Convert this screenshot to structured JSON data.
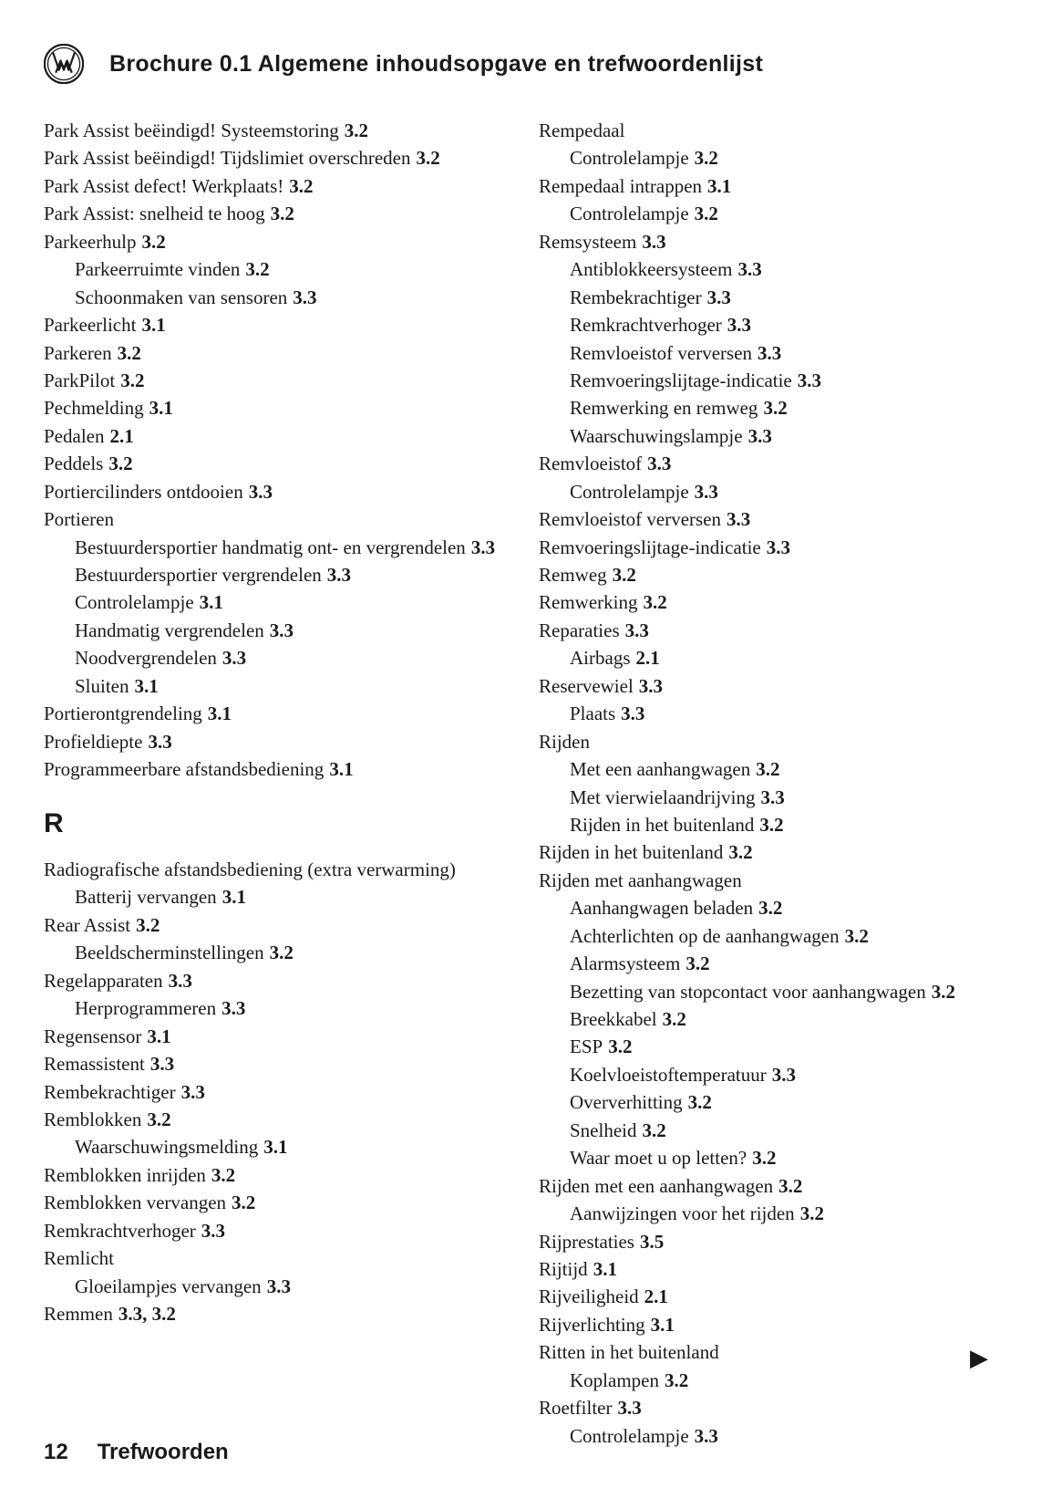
{
  "header": {
    "title": "Brochure 0.1  Algemene inhoudsopgave en trefwoordenlijst"
  },
  "footer": {
    "page_number": "12",
    "section": "Trefwoorden"
  },
  "continue_arrow": "▶",
  "left_column": [
    {
      "indent": 0,
      "label": "Park Assist beëindigd! Systeemstoring",
      "ref": "3.2"
    },
    {
      "indent": 0,
      "label": "Park Assist beëindigd! Tijdslimiet overschreden",
      "ref": "3.2",
      "wrap": true
    },
    {
      "indent": 0,
      "label": "Park Assist defect! Werkplaats!",
      "ref": "3.2"
    },
    {
      "indent": 0,
      "label": "Park Assist: snelheid te hoog",
      "ref": "3.2"
    },
    {
      "indent": 0,
      "label": "Parkeerhulp",
      "ref": "3.2"
    },
    {
      "indent": 1,
      "label": "Parkeerruimte vinden",
      "ref": "3.2"
    },
    {
      "indent": 1,
      "label": "Schoonmaken van sensoren",
      "ref": "3.3"
    },
    {
      "indent": 0,
      "label": "Parkeerlicht",
      "ref": "3.1"
    },
    {
      "indent": 0,
      "label": "Parkeren",
      "ref": "3.2"
    },
    {
      "indent": 0,
      "label": "ParkPilot",
      "ref": "3.2"
    },
    {
      "indent": 0,
      "label": "Pechmelding",
      "ref": "3.1"
    },
    {
      "indent": 0,
      "label": "Pedalen",
      "ref": "2.1"
    },
    {
      "indent": 0,
      "label": "Peddels",
      "ref": "3.2"
    },
    {
      "indent": 0,
      "label": "Portiercilinders ontdooien",
      "ref": "3.3"
    },
    {
      "indent": 0,
      "label": "Portieren",
      "ref": ""
    },
    {
      "indent": 1,
      "label": "Bestuurdersportier handmatig ont- en vergrendelen",
      "ref": "3.3",
      "wrap": true
    },
    {
      "indent": 1,
      "label": "Bestuurdersportier vergrendelen",
      "ref": "3.3"
    },
    {
      "indent": 1,
      "label": "Controlelampje",
      "ref": "3.1"
    },
    {
      "indent": 1,
      "label": "Handmatig vergrendelen",
      "ref": "3.3"
    },
    {
      "indent": 1,
      "label": "Noodvergrendelen",
      "ref": "3.3"
    },
    {
      "indent": 1,
      "label": "Sluiten",
      "ref": "3.1"
    },
    {
      "indent": 0,
      "label": "Portierontgrendeling",
      "ref": "3.1"
    },
    {
      "indent": 0,
      "label": "Profieldiepte",
      "ref": "3.3"
    },
    {
      "indent": 0,
      "label": "Programmeerbare afstandsbediening",
      "ref": "3.1"
    },
    {
      "section_letter": "R"
    },
    {
      "indent": 0,
      "label": "Radiografische afstandsbediening (extra verwarming)",
      "ref": "",
      "wrap": true
    },
    {
      "indent": 1,
      "label": "Batterij vervangen",
      "ref": "3.1"
    },
    {
      "indent": 0,
      "label": "Rear Assist",
      "ref": "3.2"
    },
    {
      "indent": 1,
      "label": "Beeldscherminstellingen",
      "ref": "3.2"
    },
    {
      "indent": 0,
      "label": "Regelapparaten",
      "ref": "3.3"
    },
    {
      "indent": 1,
      "label": "Herprogrammeren",
      "ref": "3.3"
    },
    {
      "indent": 0,
      "label": "Regensensor",
      "ref": "3.1"
    },
    {
      "indent": 0,
      "label": "Remassistent",
      "ref": "3.3"
    },
    {
      "indent": 0,
      "label": "Rembekrachtiger",
      "ref": "3.3"
    },
    {
      "indent": 0,
      "label": "Remblokken",
      "ref": "3.2"
    },
    {
      "indent": 1,
      "label": "Waarschuwingsmelding",
      "ref": "3.1"
    },
    {
      "indent": 0,
      "label": "Remblokken inrijden",
      "ref": "3.2"
    },
    {
      "indent": 0,
      "label": "Remblokken vervangen",
      "ref": "3.2"
    },
    {
      "indent": 0,
      "label": "Remkrachtverhoger",
      "ref": "3.3"
    },
    {
      "indent": 0,
      "label": "Remlicht",
      "ref": ""
    },
    {
      "indent": 1,
      "label": "Gloeilampjes vervangen",
      "ref": "3.3"
    },
    {
      "indent": 0,
      "label": "Remmen",
      "ref": "3.3, 3.2"
    }
  ],
  "right_column": [
    {
      "indent": 0,
      "label": "Rempedaal",
      "ref": ""
    },
    {
      "indent": 1,
      "label": "Controlelampje",
      "ref": "3.2"
    },
    {
      "indent": 0,
      "label": "Rempedaal intrappen",
      "ref": "3.1"
    },
    {
      "indent": 1,
      "label": "Controlelampje",
      "ref": "3.2"
    },
    {
      "indent": 0,
      "label": "Remsysteem",
      "ref": "3.3"
    },
    {
      "indent": 1,
      "label": "Antiblokkeersysteem",
      "ref": "3.3"
    },
    {
      "indent": 1,
      "label": "Rembekrachtiger",
      "ref": "3.3"
    },
    {
      "indent": 1,
      "label": "Remkrachtverhoger",
      "ref": "3.3"
    },
    {
      "indent": 1,
      "label": "Remvloeistof verversen",
      "ref": "3.3"
    },
    {
      "indent": 1,
      "label": "Remvoeringslijtage-indicatie",
      "ref": "3.3"
    },
    {
      "indent": 1,
      "label": "Remwerking en remweg",
      "ref": "3.2"
    },
    {
      "indent": 1,
      "label": "Waarschuwingslampje",
      "ref": "3.3"
    },
    {
      "indent": 0,
      "label": "Remvloeistof",
      "ref": "3.3"
    },
    {
      "indent": 1,
      "label": "Controlelampje",
      "ref": "3.3"
    },
    {
      "indent": 0,
      "label": "Remvloeistof verversen",
      "ref": "3.3"
    },
    {
      "indent": 0,
      "label": "Remvoeringslijtage-indicatie",
      "ref": "3.3"
    },
    {
      "indent": 0,
      "label": "Remweg",
      "ref": "3.2"
    },
    {
      "indent": 0,
      "label": "Remwerking",
      "ref": "3.2"
    },
    {
      "indent": 0,
      "label": "Reparaties",
      "ref": "3.3"
    },
    {
      "indent": 1,
      "label": "Airbags",
      "ref": "2.1"
    },
    {
      "indent": 0,
      "label": "Reservewiel",
      "ref": "3.3"
    },
    {
      "indent": 1,
      "label": "Plaats",
      "ref": "3.3"
    },
    {
      "indent": 0,
      "label": "Rijden",
      "ref": ""
    },
    {
      "indent": 1,
      "label": "Met een aanhangwagen",
      "ref": "3.2"
    },
    {
      "indent": 1,
      "label": "Met vierwielaandrijving",
      "ref": "3.3"
    },
    {
      "indent": 1,
      "label": "Rijden in het buitenland",
      "ref": "3.2"
    },
    {
      "indent": 0,
      "label": "Rijden in het buitenland",
      "ref": "3.2"
    },
    {
      "indent": 0,
      "label": "Rijden met aanhangwagen",
      "ref": ""
    },
    {
      "indent": 1,
      "label": "Aanhangwagen beladen",
      "ref": "3.2"
    },
    {
      "indent": 1,
      "label": "Achterlichten op de aanhangwagen",
      "ref": "3.2"
    },
    {
      "indent": 1,
      "label": "Alarmsysteem",
      "ref": "3.2"
    },
    {
      "indent": 1,
      "label": "Bezetting van stopcontact voor aanhangwagen",
      "ref": "3.2",
      "wrap": true
    },
    {
      "indent": 1,
      "label": "Breekkabel",
      "ref": "3.2"
    },
    {
      "indent": 1,
      "label": "ESP",
      "ref": "3.2"
    },
    {
      "indent": 1,
      "label": "Koelvloeistoftemperatuur",
      "ref": "3.3"
    },
    {
      "indent": 1,
      "label": "Oververhitting",
      "ref": "3.2"
    },
    {
      "indent": 1,
      "label": "Snelheid",
      "ref": "3.2"
    },
    {
      "indent": 1,
      "label": "Waar moet u op letten?",
      "ref": "3.2"
    },
    {
      "indent": 0,
      "label": "Rijden met een aanhangwagen",
      "ref": "3.2"
    },
    {
      "indent": 1,
      "label": "Aanwijzingen voor het rijden",
      "ref": "3.2"
    },
    {
      "indent": 0,
      "label": "Rijprestaties",
      "ref": "3.5"
    },
    {
      "indent": 0,
      "label": "Rijtijd",
      "ref": "3.1"
    },
    {
      "indent": 0,
      "label": "Rijveiligheid",
      "ref": "2.1"
    },
    {
      "indent": 0,
      "label": "Rijverlichting",
      "ref": "3.1"
    },
    {
      "indent": 0,
      "label": "Ritten in het buitenland",
      "ref": ""
    },
    {
      "indent": 1,
      "label": "Koplampen",
      "ref": "3.2"
    },
    {
      "indent": 0,
      "label": "Roetfilter",
      "ref": "3.3"
    },
    {
      "indent": 1,
      "label": "Controlelampje",
      "ref": "3.3"
    }
  ]
}
